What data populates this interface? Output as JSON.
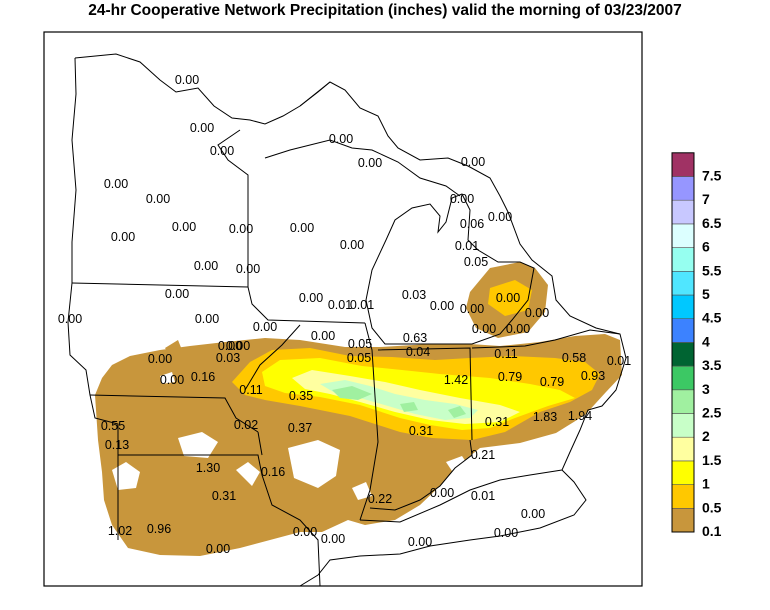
{
  "title": "24-hr Cooperative Network Precipitation (inches) valid the morning of  03/23/2007",
  "legend": {
    "bins": [
      {
        "label": "0.1",
        "color": "#c8963c"
      },
      {
        "label": "0.5",
        "color": "#ffc800"
      },
      {
        "label": "1",
        "color": "#ffff00"
      },
      {
        "label": "1.5",
        "color": "#ffffa0"
      },
      {
        "label": "2",
        "color": "#c8ffc8"
      },
      {
        "label": "2.5",
        "color": "#a0f0a0"
      },
      {
        "label": "3",
        "color": "#3cc864"
      },
      {
        "label": "3.5",
        "color": "#006432"
      },
      {
        "label": "4",
        "color": "#3c82ff"
      },
      {
        "label": "4.5",
        "color": "#00c8ff"
      },
      {
        "label": "5",
        "color": "#50e6ff"
      },
      {
        "label": "5.5",
        "color": "#96fff0"
      },
      {
        "label": "6",
        "color": "#dcffff"
      },
      {
        "label": "6.5",
        "color": "#c8c8ff"
      },
      {
        "label": "7",
        "color": "#9696ff"
      },
      {
        "label": "7.5",
        "color": "#a03264"
      }
    ]
  },
  "stations": [
    "0.00",
    "0.00",
    "0.00",
    "0.00",
    "0.00",
    "0.00",
    "0.00",
    "0.00",
    "0.00",
    "0.00",
    "0.00",
    "0.00",
    "0.00",
    "0.00",
    "0.00",
    "0.00",
    "0.00",
    "0.00",
    "0.00",
    "0.00",
    "0.00",
    "0.01",
    "0.01",
    "0.03",
    "0.00",
    "0.00",
    "0.00",
    "0.00",
    "0.06",
    "0.01",
    "0.05",
    "0.00",
    "0.00",
    "0.00",
    "0.00",
    "0.00",
    "0.00",
    "0.00",
    "0.05",
    "0.63",
    "0.03",
    "0.05",
    "0.11",
    "0.58",
    "0.01",
    "0.04",
    "0.16",
    "0.11",
    "0.35",
    "1.42",
    "0.79",
    "0.79",
    "0.93",
    "0.55",
    "0.13",
    "0.02",
    "0.37",
    "0.31",
    "0.31",
    "1.83",
    "1.94",
    "1.30",
    "0.16",
    "0.21",
    "0.31",
    "0.22",
    "0.00",
    "0.01",
    "0.00",
    "0.00",
    "1.02",
    "0.96",
    "0.00",
    "0.00",
    "0.00",
    "0.00",
    "0.00"
  ]
}
